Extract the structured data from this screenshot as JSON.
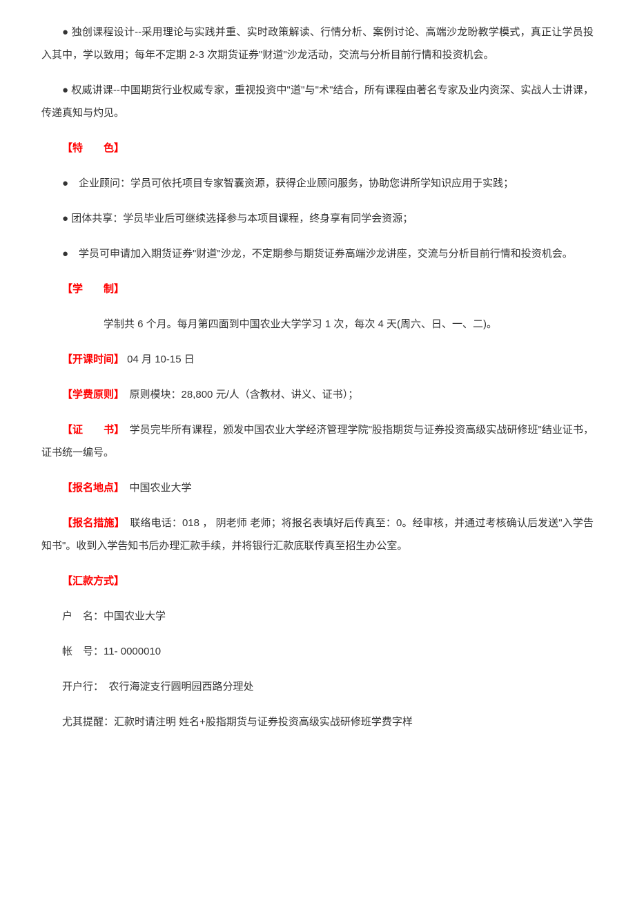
{
  "paragraphs": {
    "p1": "● 独创课程设计--采用理论与实践并重、实时政策解读、行情分析、案例讨论、高端沙龙盼教学模式，真正让学员投入其中，学以致用；每年不定期 2-3 次期货证券\"财道\"沙龙活动，交流与分析目前行情和投资机会。",
    "p2": "● 权威讲课--中国期货行业权威专家，重视投资中\"道\"与\"术\"结合，所有课程由著名专家及业内资深、实战人士讲课，传递真知与灼见。",
    "features_label": "【特　　色】",
    "p3": "●　企业顾问：学员可依托项目专家智囊资源，获得企业顾问服务，协助您讲所学知识应用于实践；",
    "p4": "● 团体共享：学员毕业后可继续选择参与本项目课程，终身享有同学会资源；",
    "p5": "●　学员可申请加入期货证券\"财道\"沙龙，不定期参与期货证券高端沙龙讲座，交流与分析目前行情和投资机会。",
    "duration_label": "【学　　制】",
    "p6": "学制共 6 个月。每月第四面到中国农业大学学习 1 次，每次 4 天(周六、日、一、二)。",
    "start_label": "【开课时间】",
    "start_value": " 04 月 10-15 日",
    "fee_label": "【学费原则】",
    "fee_value": "　原则模块：28,800 元/人（含教材、讲义、证书）；",
    "cert_label": "【证　　书】",
    "cert_value": "　学员完毕所有课程，颁发中国农业大学经济管理学院\"股指期货与证券投资高级实战研修班\"结业证书，证书统一编号。",
    "location_label": "【报名地点】",
    "location_value": "　中国农业大学",
    "method_label": "【报名措施】",
    "method_value": "　联络电话：018 ， 阴老师 老师；将报名表填好后传真至：0。经审核，并通过考核确认后发送\"入学告知书\"。收到入学告知书后办理汇款手续，并将银行汇款底联传真至招生办公室。",
    "payment_label": "【汇款方式】",
    "account_name": "户　名：中国农业大学",
    "account_number": "帐　号：11- 0000010",
    "bank": "开户行：　农行海淀支行圆明园西路分理处",
    "reminder": "尤其提醒：汇款时请注明  姓名+股指期货与证券投资高级实战研修班学费字样"
  }
}
